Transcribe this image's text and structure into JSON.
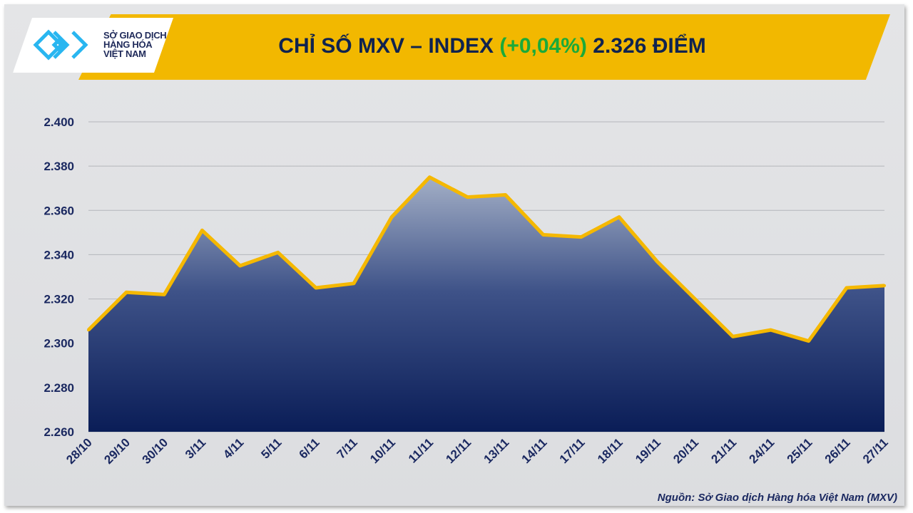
{
  "header": {
    "title_prefix": "CHỈ SỐ MXV – INDEX",
    "change": "(+0,04%)",
    "value_text": "2.326 ĐIỂM"
  },
  "logo": {
    "line1": "SỞ GIAO DỊCH",
    "line2": "HÀNG HÓA",
    "line3": "VIỆT NAM"
  },
  "source": "Nguồn: Sở Giao dịch Hàng hóa Việt Nam (MXV)",
  "colors": {
    "banner": "#f2b800",
    "line": "#f5b800",
    "area_top": "#8e9cb8",
    "area_bottom": "#0c1f5a",
    "change": "#1aaa3a"
  },
  "chart_data": {
    "type": "area",
    "title": "CHỈ SỐ MXV – INDEX (+0,04%) 2.326 ĐIỂM",
    "categories": [
      "28/10",
      "29/10",
      "30/10",
      "3/11",
      "4/11",
      "5/11",
      "6/11",
      "7/11",
      "10/11",
      "11/11",
      "12/11",
      "13/11",
      "14/11",
      "17/11",
      "18/11",
      "19/11",
      "20/11",
      "21/11",
      "24/11",
      "25/11",
      "26/11",
      "27/11"
    ],
    "values": [
      2306,
      2323,
      2322,
      2351,
      2335,
      2341,
      2325,
      2327,
      2357,
      2375,
      2366,
      2367,
      2349,
      2348,
      2357,
      2337,
      2320,
      2303,
      2306,
      2301,
      2325,
      2326
    ],
    "ylim": [
      2260,
      2400
    ],
    "yticks": [
      2260,
      2280,
      2300,
      2320,
      2340,
      2360,
      2380,
      2400
    ],
    "ytick_labels": [
      "2.260",
      "2.280",
      "2.300",
      "2.320",
      "2.340",
      "2.360",
      "2.380",
      "2.400"
    ],
    "grid": true
  }
}
